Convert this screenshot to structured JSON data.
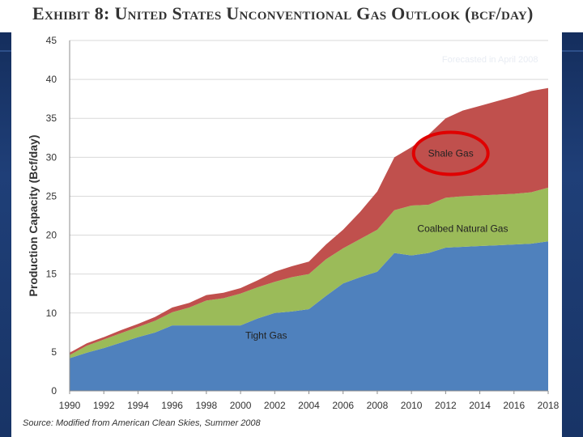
{
  "title": "Exhibit 8: United States Unconventional Gas Outlook (bcf/day)",
  "source": "Source: Modified from American Clean Skies, Summer 2008",
  "watermark": "Forecasted in April 2008",
  "colors": {
    "tight": "#4f81bd",
    "coalbed": "#9bbb59",
    "shale": "#c0504d",
    "highlight": "#e00000",
    "plot_bg": "#ffffff",
    "grid": "#d9d9d9"
  },
  "chart_data": {
    "type": "area",
    "stacked": true,
    "title": "Exhibit 8: United States Unconventional Gas Outlook (bcf/day)",
    "xlabel": "",
    "ylabel": "Production Capacity (Bcf/day)",
    "xlim": [
      1990,
      2018
    ],
    "ylim": [
      0,
      45
    ],
    "x_ticks": [
      1990,
      1992,
      1994,
      1996,
      1998,
      2000,
      2002,
      2004,
      2006,
      2008,
      2010,
      2012,
      2014,
      2016,
      2018
    ],
    "y_ticks": [
      0,
      5,
      10,
      15,
      20,
      25,
      30,
      35,
      40,
      45
    ],
    "grid": "horizontal",
    "x": [
      1990,
      1991,
      1992,
      1993,
      1994,
      1995,
      1996,
      1997,
      1998,
      1999,
      2000,
      2001,
      2002,
      2003,
      2004,
      2005,
      2006,
      2007,
      2008,
      2009,
      2010,
      2011,
      2012,
      2013,
      2014,
      2015,
      2016,
      2017,
      2018
    ],
    "series": [
      {
        "name": "Tight Gas",
        "label": "Tight Gas",
        "values": [
          4.2,
          4.9,
          5.5,
          6.2,
          6.9,
          7.5,
          8.4,
          8.4,
          8.4,
          8.4,
          8.4,
          9.3,
          10.0,
          10.2,
          10.5,
          12.2,
          13.8,
          14.6,
          15.3,
          17.7,
          17.4,
          17.7,
          18.4,
          18.5,
          18.6,
          18.7,
          18.8,
          18.9,
          19.2
        ]
      },
      {
        "name": "Coalbed Natural Gas",
        "label": "Coalbed Natural Gas",
        "values": [
          0.4,
          0.9,
          1.1,
          1.2,
          1.3,
          1.5,
          1.7,
          2.3,
          3.2,
          3.5,
          4.1,
          4.0,
          4.0,
          4.4,
          4.5,
          4.7,
          4.5,
          4.9,
          5.4,
          5.5,
          6.4,
          6.2,
          6.4,
          6.5,
          6.5,
          6.5,
          6.5,
          6.6,
          6.9
        ]
      },
      {
        "name": "Shale Gas",
        "label": "Shale Gas",
        "values": [
          0.3,
          0.3,
          0.3,
          0.4,
          0.4,
          0.5,
          0.6,
          0.6,
          0.7,
          0.7,
          0.7,
          0.9,
          1.3,
          1.4,
          1.6,
          1.9,
          2.4,
          3.5,
          4.9,
          6.8,
          7.5,
          9.0,
          10.2,
          11.0,
          11.5,
          12.0,
          12.5,
          13.0,
          12.8
        ]
      }
    ],
    "annotations": [
      {
        "text": "Shale Gas",
        "shape": "red ellipse highlight"
      }
    ]
  }
}
